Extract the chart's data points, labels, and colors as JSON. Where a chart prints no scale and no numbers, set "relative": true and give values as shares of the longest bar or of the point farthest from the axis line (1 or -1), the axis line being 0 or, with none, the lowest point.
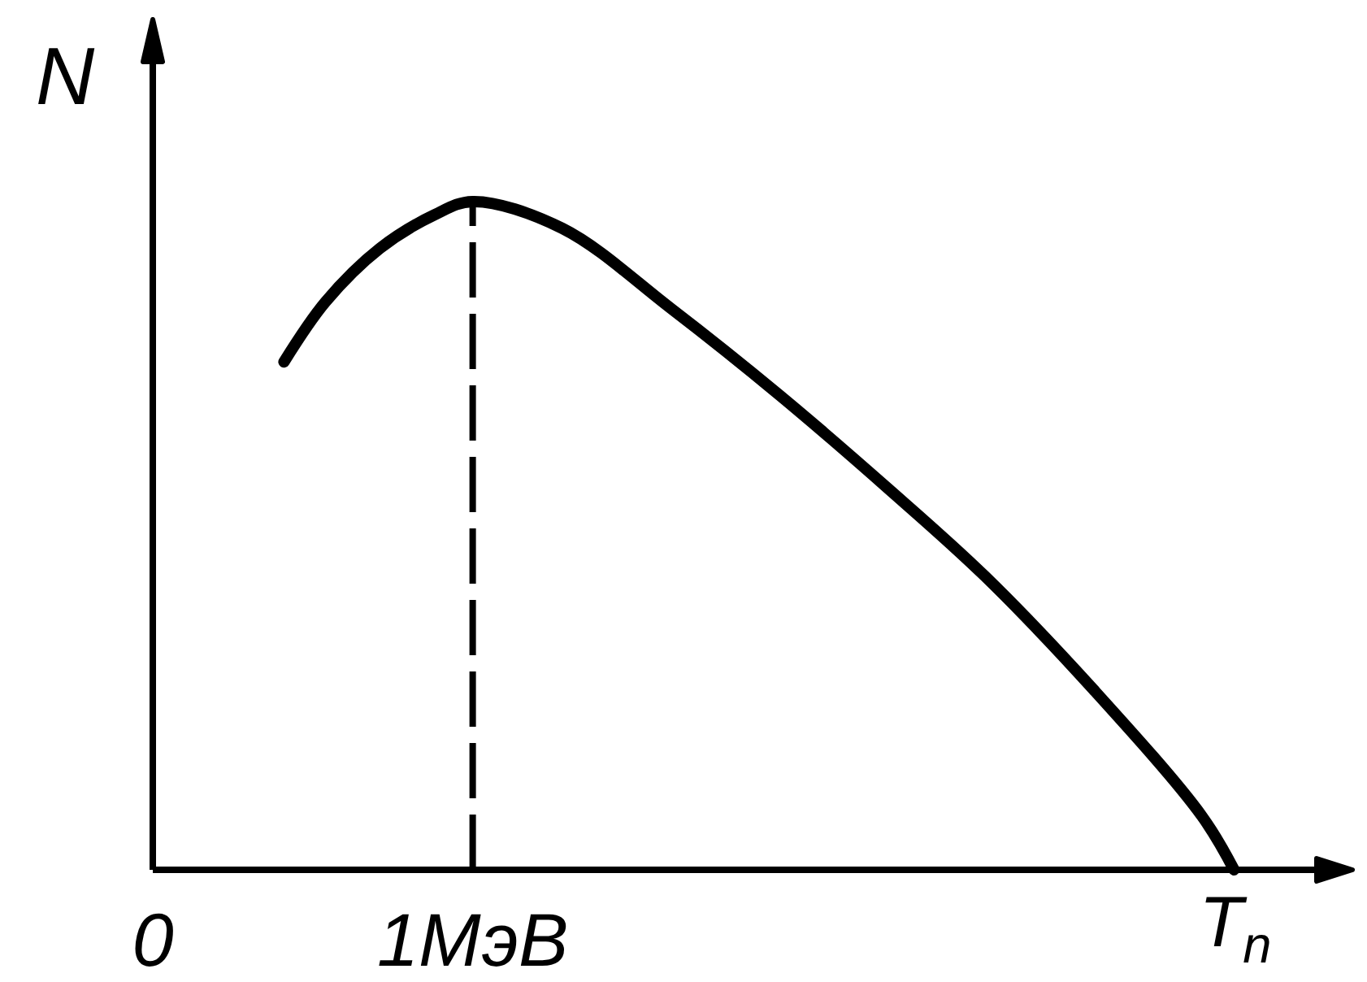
{
  "chart_data": {
    "type": "line",
    "xlabel": "T$_{n}$",
    "ylabel": "N",
    "relative": true,
    "x": [
      0.41,
      0.54,
      0.71,
      0.88,
      1.0,
      1.28,
      1.62,
      1.96,
      2.3,
      2.6,
      2.94,
      3.28,
      3.38
    ],
    "values": [
      0.76,
      0.85,
      0.93,
      0.98,
      1.0,
      0.96,
      0.84,
      0.71,
      0.57,
      0.44,
      0.27,
      0.08,
      0.0
    ],
    "color": "#000000",
    "xlim": [
      0,
      3.76
    ],
    "xticks": [
      0,
      {
        "value": 1,
        "label": "1МэВ"
      }
    ],
    "ref_lines": [
      {
        "axis": "x",
        "value": 1,
        "line_style": "dashed",
        "color": "#000000"
      }
    ]
  }
}
